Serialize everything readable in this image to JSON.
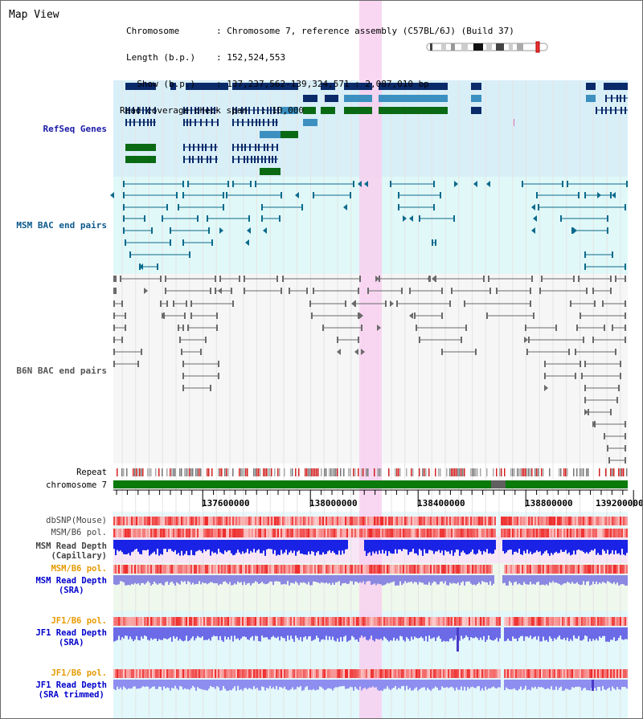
{
  "map": {
    "title": "Map View",
    "info": {
      "chromosome_key": "Chromosome",
      "chromosome_val": ": Chromosome 7, reference assembly (C57BL/6J) (Build 37)",
      "length_key": "Length (b.p.)",
      "length_val": ": 152,524,553",
      "show_key": "  Show (b.p.)",
      "show_val": ": 137,237,562-139,324,571 : 2,087,010 bp",
      "coverage_key": "Read coverage check span",
      "coverage_val": ": 10,000"
    }
  },
  "tracks": {
    "refseq": {
      "label": "RefSeq Genes",
      "color": "#1a1aa8"
    },
    "msm_bac": {
      "label": "MSM BAC end pairs",
      "color": "#0c5a8c"
    },
    "b6n_bac": {
      "label": "B6N BAC end pairs",
      "color": "#555555"
    },
    "repeat": {
      "label": "Repeat"
    },
    "chromosome": {
      "label": "chromosome 7"
    },
    "dbsnp": {
      "label": "dbSNP(Mouse)"
    },
    "msm_b6_pol": {
      "label": "MSM/B6 pol."
    },
    "msm_depth_cap": {
      "label1": "MSM Read Depth",
      "label2": "(Capillary)"
    },
    "msm_b6_pol2": {
      "label": "MSM/B6 pol.",
      "color": "#e69a00"
    },
    "msm_depth_sra": {
      "label1": "MSM Read Depth",
      "label2": "(SRA)",
      "color": "#0000cc"
    },
    "jf1_b6_pol": {
      "label": "JF1/B6 pol.",
      "color": "#e69a00"
    },
    "jf1_depth_sra": {
      "label1": "JF1 Read Depth",
      "label2": "(SRA)",
      "color": "#0000cc"
    },
    "jf1_b6_pol2": {
      "label": "JF1/B6 pol.",
      "color": "#e69a00"
    },
    "jf1_depth_trim": {
      "label1": "JF1 Read Depth",
      "label2": "(SRA trimmed)",
      "color": "#0000cc"
    }
  },
  "ruler": {
    "ticks": [
      "137600000",
      "138000000",
      "138400000",
      "138800000",
      "139200000"
    ]
  },
  "colors": {
    "refseq_bg": "#d8eff8",
    "msm_bg": "#e0f8f8",
    "b6n_bg": "#f6f6f6",
    "highlight": "#f8d0f0",
    "gene_dark": "#0a2a6a",
    "gene_mid": "#3c90c0",
    "gene_green": "#0a6a14"
  }
}
